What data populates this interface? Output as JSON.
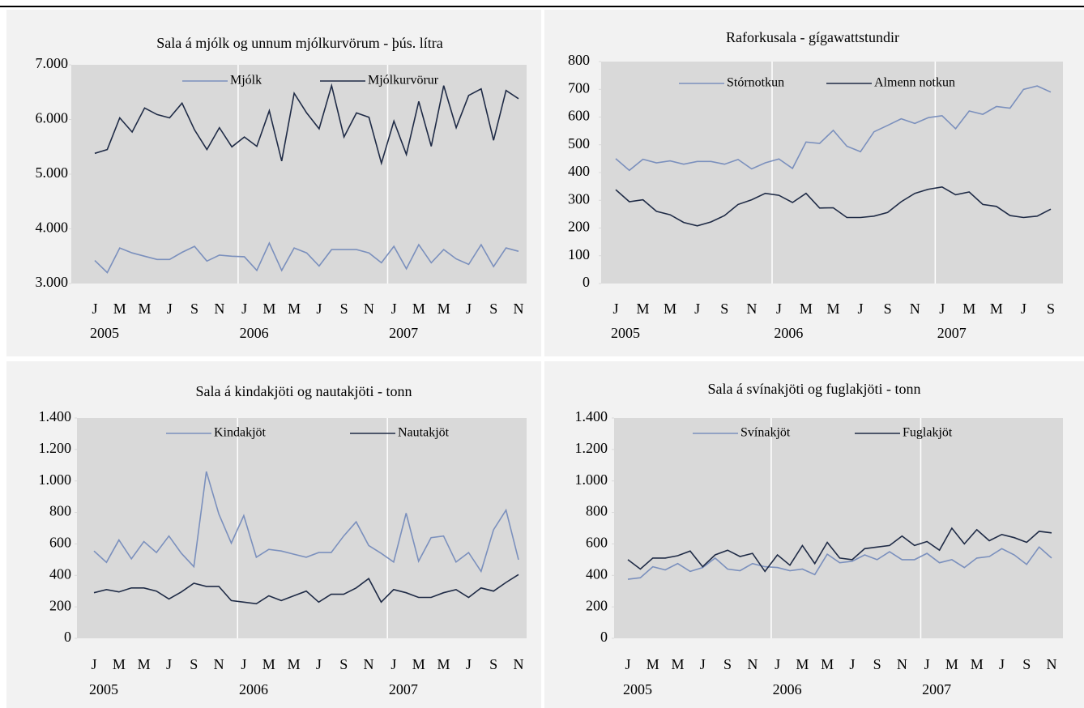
{
  "chart_data": [
    {
      "type": "line",
      "title": "Sala á mjólk og unnum mjólkurvörum - þús. lítra",
      "categories": [
        "J",
        null,
        "M",
        null,
        "M",
        null,
        "J",
        null,
        "S",
        null,
        "N",
        null,
        "J",
        null,
        "M",
        null,
        "M",
        null,
        "J",
        null,
        "S",
        null,
        "N",
        null,
        "J",
        null,
        "M",
        null,
        "M",
        null,
        "J",
        null,
        "S",
        null,
        "N"
      ],
      "years": [
        "2005",
        "2006",
        "2007"
      ],
      "series": [
        {
          "name": "Mjólk",
          "color": "#7b90bd",
          "values": [
            3420,
            3200,
            3650,
            3560,
            3500,
            3440,
            3440,
            3570,
            3680,
            3410,
            3520,
            3500,
            3490,
            3240,
            3740,
            3240,
            3650,
            3560,
            3320,
            3620,
            3620,
            3620,
            3560,
            3380,
            3680,
            3270,
            3710,
            3380,
            3620,
            3450,
            3350,
            3710,
            3310,
            3650,
            3590
          ]
        },
        {
          "name": "Mjólkurvörur",
          "color": "#1f2b46",
          "values": [
            5380,
            5450,
            6030,
            5770,
            6210,
            6090,
            6030,
            6300,
            5810,
            5450,
            5850,
            5500,
            5680,
            5510,
            6160,
            5240,
            6480,
            6120,
            5830,
            6620,
            5680,
            6120,
            6040,
            5200,
            5970,
            5360,
            6330,
            5510,
            6620,
            5850,
            6440,
            6560,
            5620,
            6530,
            6380
          ]
        }
      ],
      "ylim": [
        3000,
        7000
      ],
      "yticks": [
        {
          "value": 3000,
          "label": "3.000"
        },
        {
          "value": 4000,
          "label": "4.000"
        },
        {
          "value": 5000,
          "label": "5.000"
        },
        {
          "value": 6000,
          "label": "6.000"
        },
        {
          "value": 7000,
          "label": "7.000"
        }
      ],
      "legend": "top"
    },
    {
      "type": "line",
      "title": "Raforkusala - gígawattstundir",
      "categories": [
        "J",
        null,
        "M",
        null,
        "M",
        null,
        "J",
        null,
        "S",
        null,
        "N",
        null,
        "J",
        null,
        "M",
        null,
        "M",
        null,
        "J",
        null,
        "S",
        null,
        "N",
        null,
        "J",
        null,
        "M",
        null,
        "M",
        null,
        "J",
        null,
        "S"
      ],
      "years": [
        "2005",
        "2006",
        "2007"
      ],
      "series": [
        {
          "name": "Stórnotkun",
          "color": "#7b90bd",
          "values": [
            450,
            408,
            448,
            435,
            442,
            430,
            440,
            440,
            430,
            447,
            413,
            435,
            449,
            415,
            510,
            505,
            552,
            495,
            475,
            547,
            570,
            594,
            577,
            598,
            605,
            558,
            622,
            610,
            638,
            632,
            700,
            712,
            690
          ]
        },
        {
          "name": "Almenn notkun",
          "color": "#1f2b46",
          "values": [
            338,
            295,
            302,
            260,
            248,
            220,
            208,
            222,
            245,
            285,
            302,
            325,
            318,
            292,
            325,
            272,
            273,
            238,
            238,
            243,
            256,
            295,
            325,
            340,
            348,
            320,
            330,
            285,
            278,
            245,
            238,
            243,
            268
          ]
        }
      ],
      "ylim": [
        0,
        800
      ],
      "yticks": [
        0,
        100,
        200,
        300,
        400,
        500,
        600,
        700,
        800
      ],
      "legend": "top"
    },
    {
      "type": "line",
      "title": "Sala á kindakjöti og nautakjöti - tonn",
      "categories": [
        "J",
        null,
        "M",
        null,
        "M",
        null,
        "J",
        null,
        "S",
        null,
        "N",
        null,
        "J",
        null,
        "M",
        null,
        "M",
        null,
        "J",
        null,
        "S",
        null,
        "N",
        null,
        "J",
        null,
        "M",
        null,
        "M",
        null,
        "J",
        null,
        "S",
        null,
        "N"
      ],
      "years": [
        "2005",
        "2006",
        "2007"
      ],
      "series": [
        {
          "name": "Kindakjöt",
          "color": "#7b90bd",
          "values": [
            555,
            483,
            625,
            505,
            615,
            545,
            650,
            540,
            455,
            1060,
            790,
            605,
            780,
            515,
            565,
            555,
            535,
            515,
            545,
            545,
            650,
            740,
            590,
            540,
            485,
            795,
            490,
            640,
            650,
            485,
            545,
            425,
            690,
            815,
            500
          ]
        },
        {
          "name": "Nautakjöt",
          "color": "#1f2b46",
          "values": [
            290,
            310,
            295,
            320,
            320,
            300,
            250,
            295,
            350,
            330,
            330,
            240,
            230,
            220,
            270,
            240,
            270,
            300,
            230,
            280,
            280,
            320,
            380,
            230,
            310,
            290,
            260,
            260,
            290,
            310,
            260,
            320,
            300,
            355,
            405
          ]
        }
      ],
      "ylim": [
        0,
        1400
      ],
      "yticks": [
        0,
        200,
        400,
        600,
        800,
        {
          "value": 1000,
          "label": "1.000"
        },
        {
          "value": 1200,
          "label": "1.200"
        },
        {
          "value": 1400,
          "label": "1.400"
        }
      ],
      "legend": "top"
    },
    {
      "type": "line",
      "title": "Sala á svínakjöti og fuglakjöti - tonn",
      "categories": [
        "J",
        null,
        "M",
        null,
        "M",
        null,
        "J",
        null,
        "S",
        null,
        "N",
        null,
        "J",
        null,
        "M",
        null,
        "M",
        null,
        "J",
        null,
        "S",
        null,
        "N",
        null,
        "J",
        null,
        "M",
        null,
        "M",
        null,
        "J",
        null,
        "S",
        null,
        "N"
      ],
      "years": [
        "2005",
        "2006",
        "2007"
      ],
      "series": [
        {
          "name": "Svínakjöt",
          "color": "#7b90bd",
          "values": [
            375,
            385,
            455,
            435,
            475,
            425,
            450,
            510,
            440,
            430,
            475,
            455,
            450,
            430,
            440,
            405,
            535,
            480,
            490,
            530,
            500,
            550,
            500,
            500,
            540,
            480,
            500,
            450,
            510,
            520,
            570,
            530,
            470,
            580,
            510
          ]
        },
        {
          "name": "Fuglakjöt",
          "color": "#1f2b46",
          "values": [
            500,
            440,
            510,
            510,
            525,
            555,
            455,
            530,
            560,
            520,
            540,
            425,
            530,
            465,
            590,
            475,
            610,
            510,
            500,
            570,
            580,
            590,
            650,
            590,
            615,
            560,
            700,
            600,
            690,
            620,
            660,
            640,
            610,
            680,
            670
          ]
        }
      ],
      "ylim": [
        0,
        1400
      ],
      "yticks": [
        0,
        200,
        400,
        600,
        800,
        {
          "value": 1000,
          "label": "1.000"
        },
        {
          "value": 1200,
          "label": "1.200"
        },
        {
          "value": 1400,
          "label": "1.400"
        }
      ],
      "legend": "top"
    }
  ]
}
